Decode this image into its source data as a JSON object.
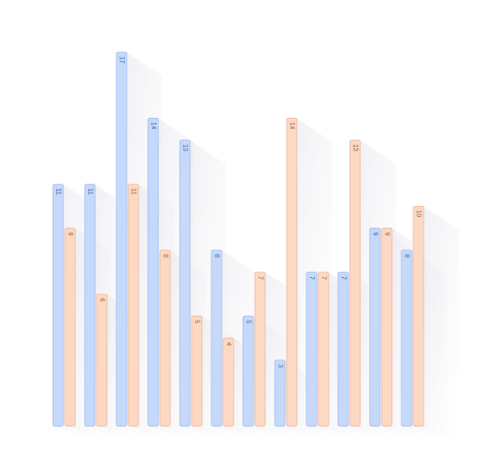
{
  "chart_data": {
    "type": "bar",
    "categories": [
      null,
      null,
      null,
      null,
      null,
      null,
      null,
      null,
      null,
      null,
      null,
      null
    ],
    "series": [
      {
        "color": "#c6d9fb",
        "values": [
          11,
          11,
          17,
          14,
          13,
          8,
          5,
          3,
          7,
          7,
          9,
          8
        ]
      },
      {
        "color": "#fdd8c3",
        "values": [
          9,
          6,
          11,
          8,
          5,
          4,
          7,
          14,
          7,
          13,
          9,
          10
        ]
      }
    ]
  }
}
